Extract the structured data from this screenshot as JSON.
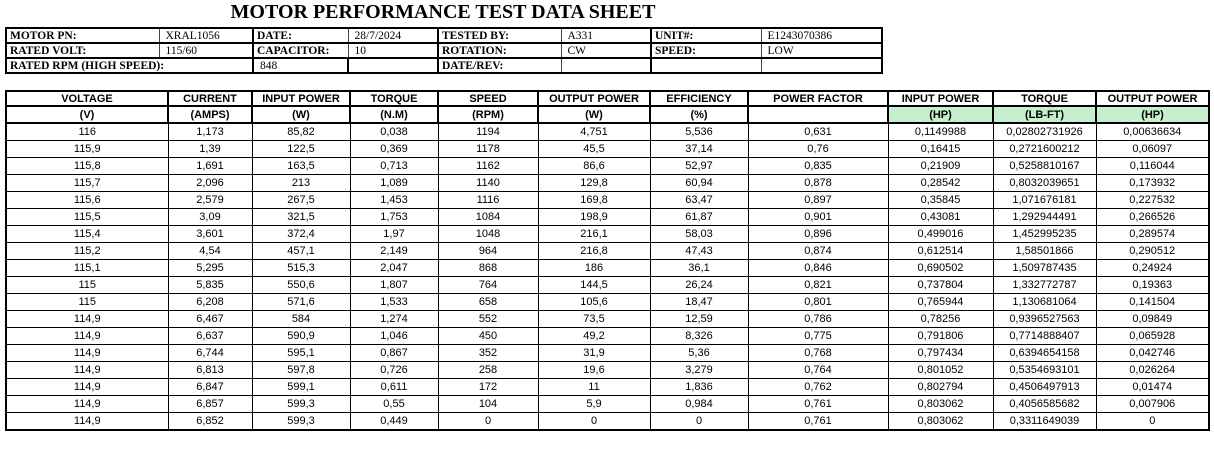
{
  "title": "MOTOR PERFORMANCE TEST DATA SHEET",
  "colors": {
    "header_highlight_green": "#C6EFCE",
    "border": "#000000"
  },
  "info_table": {
    "row1": {
      "l1": "MOTOR PN:",
      "v1": "XRAL1056",
      "l2": "DATE:",
      "v2": "28/7/2024",
      "l3": "TESTED BY:",
      "v3": "A331",
      "l4": "UNIT#:",
      "v4": "E1243070386"
    },
    "row2": {
      "l1": "RATED VOLT:",
      "v1": "115/60",
      "l2": "CAPACITOR:",
      "v2": "10",
      "l3": "ROTATION:",
      "v3": "CW",
      "l4": "SPEED:",
      "v4": "LOW"
    },
    "row3": {
      "l1": "RATED RPM (HIGH SPEED):",
      "v1": "848",
      "v2": "",
      "l3": "DATE/REV:",
      "v3": "",
      "l4": "",
      "v4": ""
    }
  },
  "data_table": {
    "columns": [
      {
        "key": "voltage",
        "name": "VOLTAGE",
        "unit": "(V)",
        "highlight": false
      },
      {
        "key": "current",
        "name": "CURRENT",
        "unit": "(AMPS)",
        "highlight": false
      },
      {
        "key": "input-power-w",
        "name": "INPUT POWER",
        "unit": "(W)",
        "highlight": false
      },
      {
        "key": "torque-nm",
        "name": "TORQUE",
        "unit": "(N.M)",
        "highlight": false
      },
      {
        "key": "speed-rpm",
        "name": "SPEED",
        "unit": "(RPM)",
        "highlight": false
      },
      {
        "key": "output-power-w",
        "name": "OUTPUT POWER",
        "unit": "(W)",
        "highlight": false
      },
      {
        "key": "efficiency",
        "name": "EFFICIENCY",
        "unit": "(%)",
        "highlight": false
      },
      {
        "key": "power-factor",
        "name": "POWER FACTOR",
        "unit": "",
        "highlight": false
      },
      {
        "key": "input-power-hp",
        "name": "INPUT POWER",
        "unit": "(HP)",
        "highlight": true
      },
      {
        "key": "torque-lbft",
        "name": "TORQUE",
        "unit": "(LB-FT)",
        "highlight": true
      },
      {
        "key": "output-power-hp",
        "name": "OUTPUT POWER",
        "unit": "(HP)",
        "highlight": true
      }
    ],
    "rows": [
      [
        "116",
        "1,173",
        "85,82",
        "0,038",
        "1194",
        "4,751",
        "5,536",
        "0,631",
        "0,1149988",
        "0,02802731926",
        "0,00636634"
      ],
      [
        "115,9",
        "1,39",
        "122,5",
        "0,369",
        "1178",
        "45,5",
        "37,14",
        "0,76",
        "0,16415",
        "0,2721600212",
        "0,06097"
      ],
      [
        "115,8",
        "1,691",
        "163,5",
        "0,713",
        "1162",
        "86,6",
        "52,97",
        "0,835",
        "0,21909",
        "0,5258810167",
        "0,116044"
      ],
      [
        "115,7",
        "2,096",
        "213",
        "1,089",
        "1140",
        "129,8",
        "60,94",
        "0,878",
        "0,28542",
        "0,8032039651",
        "0,173932"
      ],
      [
        "115,6",
        "2,579",
        "267,5",
        "1,453",
        "1116",
        "169,8",
        "63,47",
        "0,897",
        "0,35845",
        "1,071676181",
        "0,227532"
      ],
      [
        "115,5",
        "3,09",
        "321,5",
        "1,753",
        "1084",
        "198,9",
        "61,87",
        "0,901",
        "0,43081",
        "1,292944491",
        "0,266526"
      ],
      [
        "115,4",
        "3,601",
        "372,4",
        "1,97",
        "1048",
        "216,1",
        "58,03",
        "0,896",
        "0,499016",
        "1,452995235",
        "0,289574"
      ],
      [
        "115,2",
        "4,54",
        "457,1",
        "2,149",
        "964",
        "216,8",
        "47,43",
        "0,874",
        "0,612514",
        "1,58501866",
        "0,290512"
      ],
      [
        "115,1",
        "5,295",
        "515,3",
        "2,047",
        "868",
        "186",
        "36,1",
        "0,846",
        "0,690502",
        "1,509787435",
        "0,24924"
      ],
      [
        "115",
        "5,835",
        "550,6",
        "1,807",
        "764",
        "144,5",
        "26,24",
        "0,821",
        "0,737804",
        "1,332772787",
        "0,19363"
      ],
      [
        "115",
        "6,208",
        "571,6",
        "1,533",
        "658",
        "105,6",
        "18,47",
        "0,801",
        "0,765944",
        "1,130681064",
        "0,141504"
      ],
      [
        "114,9",
        "6,467",
        "584",
        "1,274",
        "552",
        "73,5",
        "12,59",
        "0,786",
        "0,78256",
        "0,9396527563",
        "0,09849"
      ],
      [
        "114,9",
        "6,637",
        "590,9",
        "1,046",
        "450",
        "49,2",
        "8,326",
        "0,775",
        "0,791806",
        "0,7714888407",
        "0,065928"
      ],
      [
        "114,9",
        "6,744",
        "595,1",
        "0,867",
        "352",
        "31,9",
        "5,36",
        "0,768",
        "0,797434",
        "0,6394654158",
        "0,042746"
      ],
      [
        "114,9",
        "6,813",
        "597,8",
        "0,726",
        "258",
        "19,6",
        "3,279",
        "0,764",
        "0,801052",
        "0,5354693101",
        "0,026264"
      ],
      [
        "114,9",
        "6,847",
        "599,1",
        "0,611",
        "172",
        "11",
        "1,836",
        "0,762",
        "0,802794",
        "0,4506497913",
        "0,01474"
      ],
      [
        "114,9",
        "6,857",
        "599,3",
        "0,55",
        "104",
        "5,9",
        "0,984",
        "0,761",
        "0,803062",
        "0,4056585682",
        "0,007906"
      ],
      [
        "114,9",
        "6,852",
        "599,3",
        "0,449",
        "0",
        "0",
        "0",
        "0,761",
        "0,803062",
        "0,3311649039",
        "0"
      ]
    ]
  }
}
